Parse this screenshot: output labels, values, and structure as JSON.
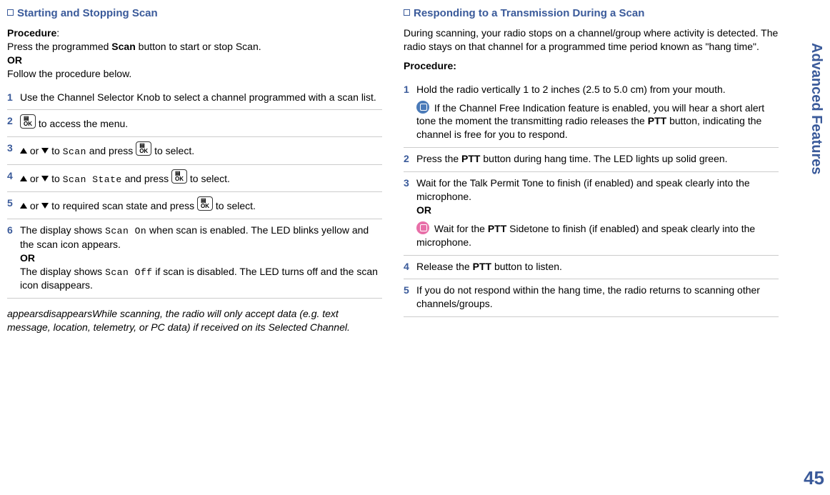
{
  "sidebar_label": "Advanced Features",
  "page_number": "45",
  "left": {
    "title": "Starting and Stopping Scan",
    "proc_label": "Procedure",
    "intro1": "Press the programmed ",
    "intro1b": "Scan",
    "intro1c": " button to start or stop Scan.",
    "or": "OR",
    "intro2": "Follow the procedure below.",
    "step1": "Use the Channel Selector Knob to select a channel programmed with a scan list.",
    "step2_tail": " to access the menu.",
    "step3_mid": " to ",
    "step3_scan": "Scan",
    "step3_tail": " and press ",
    "step3_sel": " to select.",
    "step4_mid": " to ",
    "step4_scan": "Scan State",
    "step4_tail": " and press ",
    "step4_sel": " to select.",
    "step5_mid": " to required scan state and press ",
    "step5_sel": " to select.",
    "step6a": "The display shows ",
    "step6a_code": "Scan On",
    "step6a_tail": " when scan is enabled. The LED blinks yellow and the scan icon appears.",
    "step6b": "The display shows ",
    "step6b_code": "Scan Off",
    "step6b_tail": " if scan is disabled. The LED turns off and the scan icon disappears.",
    "footnote": "appearsdisappearsWhile scanning, the radio will only accept data (e.g. text message, location, telemetry, or PC data) if received on its Selected Channel.",
    "ok_label": "▤\nOK",
    "or_text": " or "
  },
  "right": {
    "title": "Responding to a Transmission During a Scan",
    "intro": "During scanning, your radio stops on a channel/group where activity is detected. The radio stays on that channel for a programmed time period known as \"hang time\".",
    "proc_label": "Procedure:",
    "step1": "Hold the radio vertically 1 to 2 inches (2.5 to 5.0 cm) from your mouth.",
    "step1_note_a": " If the Channel Free Indication feature is enabled, you will hear a short alert tone the moment the transmitting radio releases the ",
    "step1_note_b": "PTT",
    "step1_note_c": " button, indicating the channel is free for you to respond.",
    "step2a": "Press the ",
    "step2b": "PTT",
    "step2c": " button during hang time. The LED lights up solid green.",
    "step3": "Wait for the Talk Permit Tone to finish (if enabled) and speak clearly into the microphone.",
    "or": "OR",
    "step3_note_a": " Wait for the ",
    "step3_note_b": "PTT",
    "step3_note_c": " Sidetone to finish (if enabled) and speak clearly into the microphone.",
    "step4a": "Release the ",
    "step4b": "PTT",
    "step4c": " button to listen.",
    "step5": "If you do not respond within the hang time, the radio returns to scanning other channels/groups."
  }
}
